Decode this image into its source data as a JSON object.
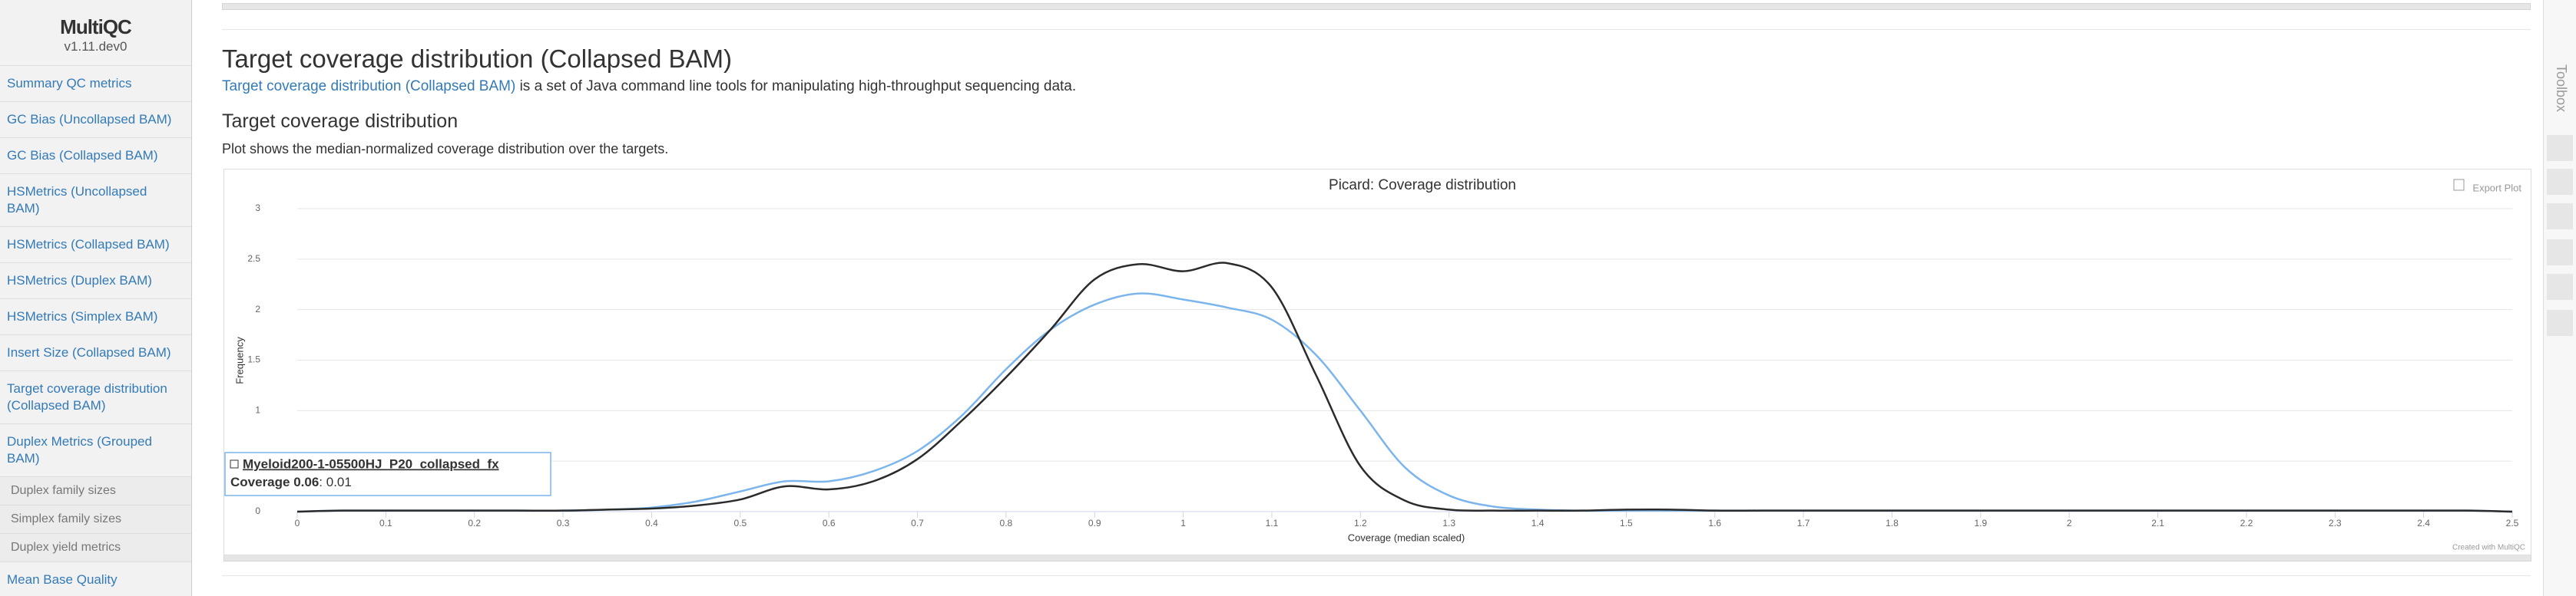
{
  "sidebar": {
    "logo": "MultiQC",
    "version": "v1.11.dev0",
    "items": [
      "Summary QC metrics",
      "GC Bias (Uncollapsed BAM)",
      "GC Bias (Collapsed BAM)",
      "HSMetrics (Uncollapsed BAM)",
      "HSMetrics (Collapsed BAM)",
      "HSMetrics (Duplex BAM)",
      "HSMetrics (Simplex BAM)",
      "Insert Size (Collapsed BAM)",
      "Target coverage distribution (Collapsed BAM)",
      "Duplex Metrics (Grouped BAM)"
    ],
    "subitems": [
      "Duplex family sizes",
      "Simplex family sizes",
      "Duplex yield metrics"
    ],
    "last_item": "Mean Base Quality"
  },
  "section": {
    "title": "Target coverage distribution (Collapsed BAM)",
    "description_link": "Target coverage distribution (Collapsed BAM)",
    "description_text": "is a set of Java command line tools for manipulating high-throughput sequencing data.",
    "subtitle": "Target coverage distribution",
    "plot_text": "Plot shows the median-normalized coverage distribution over the targets."
  },
  "toolbox": {
    "title": "Toolbox"
  },
  "chart_data": {
    "type": "line",
    "title": "Picard: Coverage distribution",
    "x_label": "Coverage (median scaled)",
    "y_label": "Frequency",
    "export_button": "Export Plot",
    "credit": "Created with MultiQC",
    "x": [
      0,
      0.05,
      0.1,
      0.15,
      0.2,
      0.25,
      0.3,
      0.35,
      0.4,
      0.45,
      0.5,
      0.55,
      0.6,
      0.65,
      0.7,
      0.75,
      0.8,
      0.85,
      0.9,
      0.95,
      1,
      1.05,
      1.1,
      1.15,
      1.2,
      1.25,
      1.3,
      1.35,
      1.4,
      1.45,
      1.5,
      1.55,
      1.6,
      1.65,
      1.7,
      1.75,
      1.8,
      1.85,
      1.9,
      1.95,
      2,
      2.05,
      2.1,
      2.15,
      2.2,
      2.25,
      2.3,
      2.35,
      2.4,
      2.45,
      2.5
    ],
    "series": [
      {
        "color": "#2b2b2b",
        "values": [
          0,
          0.01,
          0.01,
          0.01,
          0.01,
          0.01,
          0.01,
          0.02,
          0.03,
          0.06,
          0.12,
          0.25,
          0.22,
          0.3,
          0.52,
          0.9,
          1.33,
          1.8,
          2.3,
          2.45,
          2.38,
          2.46,
          2.22,
          1.35,
          0.45,
          0.11,
          0.02,
          0.01,
          0.01,
          0.01,
          0.02,
          0.02,
          0.01,
          0.01,
          0.01,
          0.01,
          0.01,
          0.01,
          0.01,
          0.01,
          0.01,
          0.01,
          0.01,
          0.01,
          0.01,
          0.01,
          0.01,
          0.01,
          0.01,
          0.01,
          0
        ]
      },
      {
        "color": "#7cb5ec",
        "values": [
          0,
          0.01,
          0.01,
          0.01,
          0.01,
          0.01,
          0.01,
          0.02,
          0.04,
          0.1,
          0.2,
          0.3,
          0.3,
          0.4,
          0.6,
          0.95,
          1.41,
          1.8,
          2.05,
          2.16,
          2.1,
          2.02,
          1.9,
          1.55,
          1,
          0.44,
          0.16,
          0.05,
          0.02,
          0.01,
          0.01,
          0.01,
          0.01,
          0.01,
          0.01,
          0.01,
          0.01,
          0.01,
          0.01,
          0.01,
          0.01,
          0.01,
          0.01,
          0.01,
          0.01,
          0.01,
          0.01,
          0.01,
          0.01,
          0.01,
          0
        ]
      }
    ],
    "xlim": [
      0,
      2.5
    ],
    "ylim": [
      0,
      3
    ],
    "xticks": [
      0,
      0.1,
      0.2,
      0.3,
      0.4,
      0.5,
      0.6,
      0.7,
      0.8,
      0.9,
      1,
      1.1,
      1.2,
      1.3,
      1.4,
      1.5,
      1.6,
      1.7,
      1.8,
      1.9,
      2,
      2.1,
      2.2,
      2.3,
      2.4,
      2.5
    ],
    "yticks": [
      0,
      0.5,
      1,
      1.5,
      2,
      2.5,
      3
    ],
    "grid": true,
    "tooltip": {
      "title": "Myeloid200-1-05500HJ_P20_collapsed_fx",
      "label": "Coverage 0.06",
      "value": 0.01
    }
  }
}
